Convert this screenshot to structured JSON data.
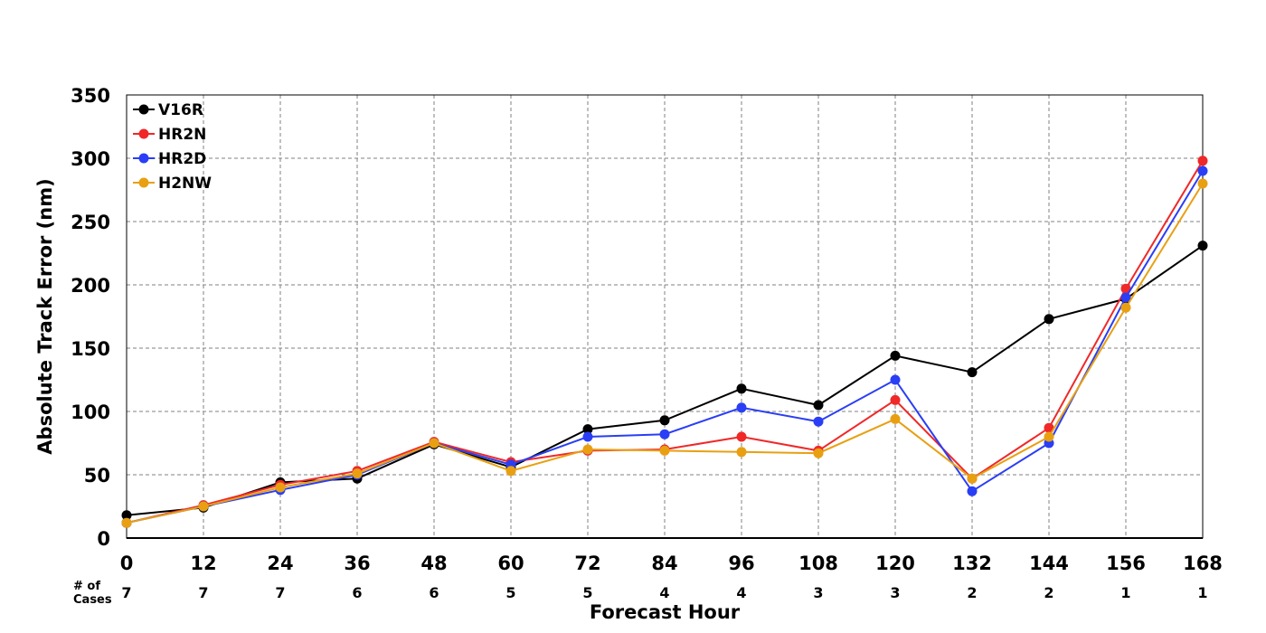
{
  "chart_data": {
    "type": "line",
    "x": [
      0,
      12,
      24,
      36,
      48,
      60,
      72,
      84,
      96,
      108,
      120,
      132,
      144,
      156,
      168
    ],
    "xlabel": "Forecast Hour",
    "ylabel": "Absolute Track Error (nm)",
    "xlim": [
      0,
      168
    ],
    "ylim": [
      0,
      350
    ],
    "yticks": [
      0,
      50,
      100,
      150,
      200,
      250,
      300,
      350
    ],
    "grid": true,
    "legend": "top-left",
    "cases_title": "# of\nCases",
    "cases": [
      7,
      7,
      7,
      6,
      6,
      5,
      5,
      4,
      4,
      3,
      3,
      2,
      2,
      1,
      1
    ],
    "series": [
      {
        "name": "V16R",
        "color": "#000000",
        "values": [
          18,
          24,
          44,
          47,
          74,
          56,
          86,
          93,
          118,
          105,
          144,
          131,
          173,
          189,
          231
        ]
      },
      {
        "name": "HR2N",
        "color": "#f02828",
        "values": [
          12,
          26,
          42,
          53,
          76,
          60,
          69,
          70,
          80,
          69,
          109,
          47,
          87,
          197,
          298
        ]
      },
      {
        "name": "HR2D",
        "color": "#2a3ef5",
        "values": [
          12,
          25,
          38,
          50,
          75,
          58,
          80,
          82,
          103,
          92,
          125,
          37,
          75,
          190,
          290
        ]
      },
      {
        "name": "H2NW",
        "color": "#e8a012",
        "values": [
          12,
          25,
          40,
          51,
          75,
          53,
          70,
          69,
          68,
          67,
          94,
          47,
          80,
          182,
          280
        ]
      }
    ]
  }
}
